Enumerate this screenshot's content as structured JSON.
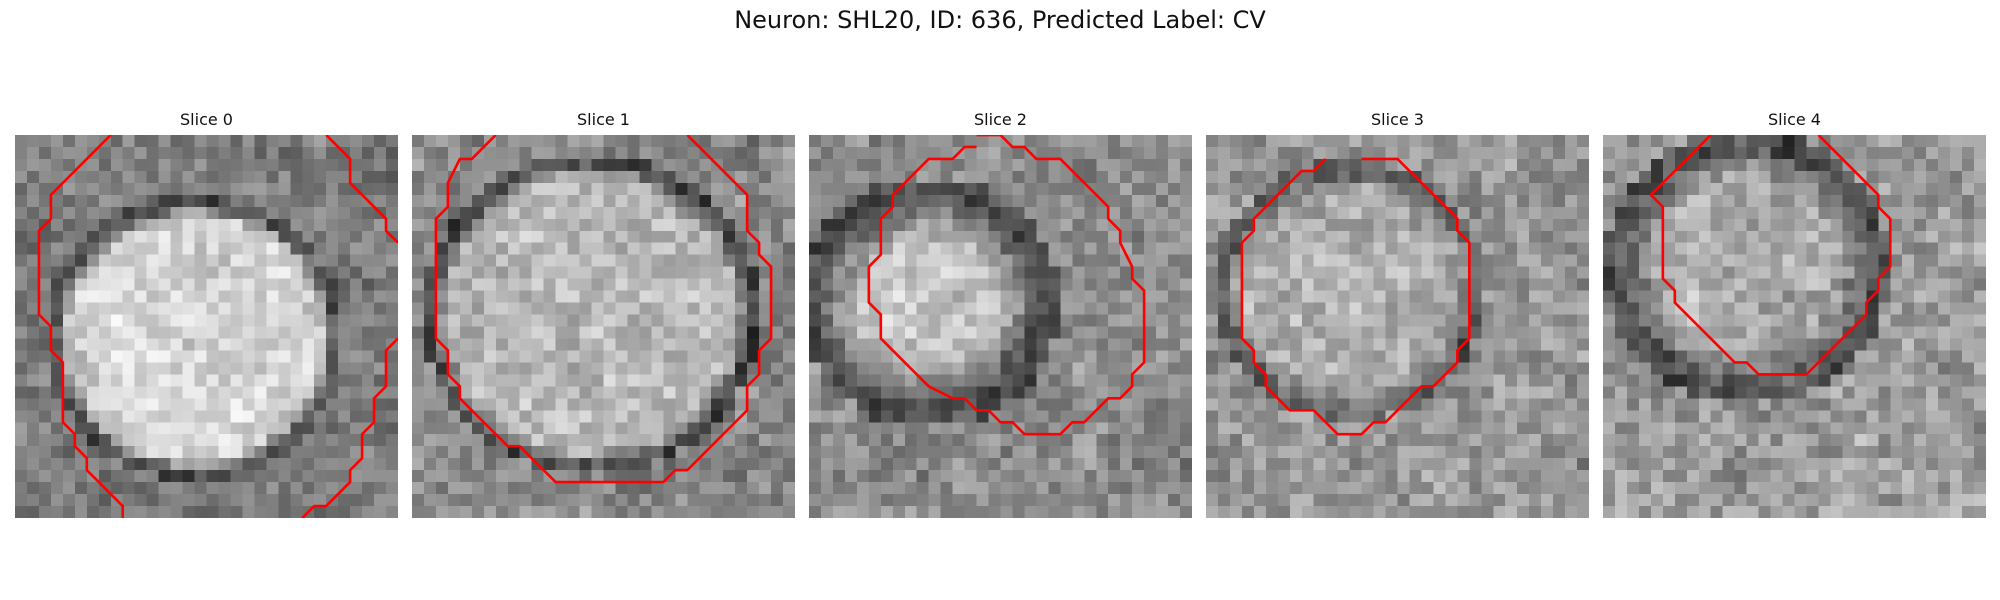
{
  "figure": {
    "title": "Neuron: SHL20, ID: 636, Predicted Label: CV",
    "contour_color": "#ff0000"
  },
  "panels": [
    {
      "title": "Slice 0",
      "image": "grayscale-microscopy-slice"
    },
    {
      "title": "Slice 1",
      "image": "grayscale-microscopy-slice"
    },
    {
      "title": "Slice 2",
      "image": "grayscale-microscopy-slice"
    },
    {
      "title": "Slice 3",
      "image": "grayscale-microscopy-slice"
    },
    {
      "title": "Slice 4",
      "image": "grayscale-microscopy-slice"
    }
  ]
}
